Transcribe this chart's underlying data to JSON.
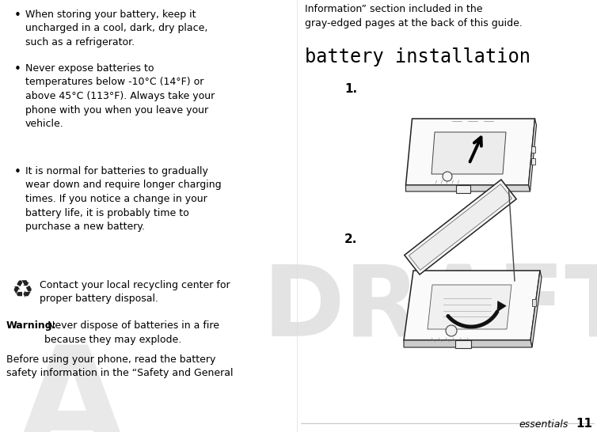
{
  "bg_color": "#ffffff",
  "draft_color": "#c8c8c8",
  "page_number": "11",
  "essentials_text": "essentials",
  "bullet1": "When storing your battery, keep it\nuncharged in a cool, dark, dry place,\nsuch as a refrigerator.",
  "bullet2": "Never expose batteries to\ntemperatures below -10°C (14°F) or\nabove 45°C (113°F). Always take your\nphone with you when you leave your\nvehicle.",
  "bullet3": "It is normal for batteries to gradually\nwear down and require longer charging\ntimes. If you notice a change in your\nbattery life, it is probably time to\npurchase a new battery.",
  "recycle_text": "Contact your local recycling center for\nproper battery disposal.",
  "warning_bold": "Warning:",
  "warning_rest": " Never dispose of batteries in a fire\nbecause they may explode.",
  "before_text": "Before using your phone, read the battery\nsafety information in the “Safety and General",
  "right_top_text": "Information” section included in the\ngray-edged pages at the back of this guide.",
  "section_title": "battery installation",
  "label1": "1.",
  "label2": "2.",
  "text_color": "#000000",
  "body_fontsize": 9.0,
  "title_fontsize": 17,
  "label_fontsize": 10
}
